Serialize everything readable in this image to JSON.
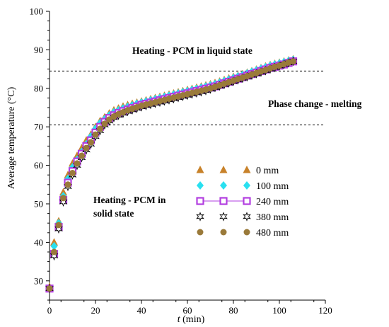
{
  "chart_data": {
    "type": "scatter",
    "xlabel_var": "t",
    "xlabel_unit": " (min)",
    "ylabel": "Average temperature (°C)",
    "xlim": [
      0,
      120
    ],
    "ylim": [
      25,
      100
    ],
    "x_ticks": [
      0,
      20,
      40,
      60,
      80,
      100,
      120
    ],
    "y_ticks": [
      30,
      40,
      50,
      60,
      70,
      80,
      90,
      100
    ],
    "grid": false,
    "legend_position": "right-middle",
    "reference_lines": [
      {
        "y": 84.5,
        "style": "dashed"
      },
      {
        "y": 70.5,
        "style": "dashed"
      }
    ],
    "annotations": [
      {
        "key": "liquid",
        "text": "Heating - PCM in liquid state"
      },
      {
        "key": "melting",
        "text": "Phase change - melting"
      },
      {
        "key": "solid1",
        "text": "Heating - PCM in"
      },
      {
        "key": "solid2",
        "text": "solid state"
      }
    ],
    "series": [
      {
        "name": "0 mm",
        "marker": "triangle",
        "color": "#C8822A",
        "x": [
          0,
          2,
          4,
          6,
          8,
          10,
          12,
          14,
          16,
          18,
          20,
          22,
          24,
          26,
          28,
          30,
          32,
          34,
          36,
          38,
          40,
          42,
          44,
          46,
          48,
          50,
          52,
          54,
          56,
          58,
          60,
          62,
          64,
          66,
          68,
          70,
          72,
          74,
          76,
          78,
          80,
          82,
          84,
          86,
          88,
          90,
          92,
          94,
          96,
          98,
          100,
          102,
          104,
          106
        ],
        "y": [
          28.5,
          40.0,
          45.5,
          53.0,
          57.5,
          60.5,
          62.5,
          64.5,
          66.5,
          68.0,
          70.0,
          71.5,
          72.5,
          73.5,
          74.3,
          74.8,
          75.3,
          75.7,
          76.0,
          76.3,
          76.6,
          76.9,
          77.2,
          77.5,
          77.8,
          78.1,
          78.4,
          78.7,
          79.0,
          79.3,
          79.6,
          79.9,
          80.2,
          80.5,
          80.8,
          81.1,
          81.4,
          81.8,
          82.2,
          82.6,
          83.0,
          83.3,
          83.7,
          84.1,
          84.5,
          84.9,
          85.3,
          85.7,
          86.1,
          86.4,
          86.7,
          87.0,
          87.3,
          87.6
        ]
      },
      {
        "name": "100 mm",
        "marker": "diamond",
        "color": "#29E0F0",
        "x": [
          0,
          2,
          4,
          6,
          8,
          10,
          12,
          14,
          16,
          18,
          20,
          22,
          24,
          26,
          28,
          30,
          32,
          34,
          36,
          38,
          40,
          42,
          44,
          46,
          48,
          50,
          52,
          54,
          56,
          58,
          60,
          62,
          64,
          66,
          68,
          70,
          72,
          74,
          76,
          78,
          80,
          82,
          84,
          86,
          88,
          90,
          92,
          94,
          96,
          98,
          100,
          102,
          104,
          106
        ],
        "y": [
          28.0,
          39.0,
          45.0,
          52.0,
          56.5,
          59.5,
          61.5,
          63.5,
          65.5,
          67.5,
          69.5,
          71.0,
          72.0,
          73.0,
          73.8,
          74.3,
          74.8,
          75.2,
          75.6,
          76.0,
          76.3,
          76.6,
          76.9,
          77.2,
          77.5,
          77.8,
          78.1,
          78.4,
          78.7,
          79.0,
          79.3,
          79.6,
          79.9,
          80.2,
          80.5,
          80.8,
          81.1,
          81.5,
          81.9,
          82.3,
          82.7,
          83.1,
          83.5,
          83.9,
          84.3,
          84.7,
          85.1,
          85.5,
          85.9,
          86.2,
          86.5,
          86.8,
          87.1,
          87.4
        ]
      },
      {
        "name": "240 mm",
        "marker": "square",
        "color": "#B23EE0",
        "x": [
          0,
          2,
          4,
          6,
          8,
          10,
          12,
          14,
          16,
          18,
          20,
          22,
          24,
          26,
          28,
          30,
          32,
          34,
          36,
          38,
          40,
          42,
          44,
          46,
          48,
          50,
          52,
          54,
          56,
          58,
          60,
          62,
          64,
          66,
          68,
          70,
          72,
          74,
          76,
          78,
          80,
          82,
          84,
          86,
          88,
          90,
          92,
          94,
          96,
          98,
          100,
          102,
          104,
          106
        ],
        "y": [
          28.0,
          37.0,
          44.0,
          51.0,
          55.5,
          58.5,
          61.0,
          63.0,
          65.0,
          66.5,
          68.5,
          70.0,
          71.3,
          72.3,
          73.0,
          73.6,
          74.1,
          74.5,
          74.9,
          75.3,
          75.7,
          76.0,
          76.3,
          76.6,
          76.9,
          77.2,
          77.5,
          77.8,
          78.1,
          78.4,
          78.7,
          79.0,
          79.3,
          79.6,
          79.9,
          80.2,
          80.5,
          80.9,
          81.3,
          81.7,
          82.1,
          82.5,
          82.9,
          83.3,
          83.7,
          84.1,
          84.5,
          84.9,
          85.3,
          85.6,
          85.9,
          86.2,
          86.6,
          87.0
        ]
      },
      {
        "name": "380 mm",
        "marker": "star",
        "color": "#000000",
        "x": [
          0,
          2,
          4,
          6,
          8,
          10,
          12,
          14,
          16,
          18,
          20,
          22,
          24,
          26,
          28,
          30,
          32,
          34,
          36,
          38,
          40,
          42,
          44,
          46,
          48,
          50,
          52,
          54,
          56,
          58,
          60,
          62,
          64,
          66,
          68,
          70,
          72,
          74,
          76,
          78,
          80,
          82,
          84,
          86,
          88,
          90,
          92,
          94,
          96,
          98,
          100,
          102,
          104,
          106
        ],
        "y": [
          28.0,
          36.5,
          43.5,
          50.5,
          54.5,
          57.5,
          60.0,
          62.0,
          64.0,
          65.5,
          67.5,
          69.0,
          70.5,
          71.5,
          72.4,
          73.0,
          73.5,
          74.0,
          74.4,
          74.8,
          75.2,
          75.5,
          75.8,
          76.1,
          76.4,
          76.7,
          77.0,
          77.3,
          77.6,
          77.9,
          78.2,
          78.5,
          78.8,
          79.1,
          79.4,
          79.8,
          80.2,
          80.6,
          81.0,
          81.4,
          81.8,
          82.2,
          82.6,
          83.0,
          83.4,
          83.8,
          84.2,
          84.6,
          85.0,
          85.4,
          85.8,
          86.2,
          86.6,
          87.0
        ]
      },
      {
        "name": "480 mm",
        "marker": "circle",
        "color": "#9A7A3A",
        "x": [
          0,
          2,
          4,
          6,
          8,
          10,
          12,
          14,
          16,
          18,
          20,
          22,
          24,
          26,
          28,
          30,
          32,
          34,
          36,
          38,
          40,
          42,
          44,
          46,
          48,
          50,
          52,
          54,
          56,
          58,
          60,
          62,
          64,
          66,
          68,
          70,
          72,
          74,
          76,
          78,
          80,
          82,
          84,
          86,
          88,
          90,
          92,
          94,
          96,
          98,
          100,
          102,
          104,
          106
        ],
        "y": [
          28.0,
          37.5,
          44.5,
          51.5,
          55.0,
          58.0,
          60.5,
          62.5,
          64.5,
          66.0,
          68.0,
          69.5,
          70.8,
          71.9,
          72.7,
          73.3,
          73.8,
          74.3,
          74.7,
          75.1,
          75.5,
          75.8,
          76.1,
          76.4,
          76.7,
          77.0,
          77.3,
          77.6,
          77.9,
          78.2,
          78.5,
          78.8,
          79.1,
          79.4,
          79.7,
          80.0,
          80.4,
          80.8,
          81.2,
          81.6,
          82.0,
          82.4,
          82.8,
          83.2,
          83.6,
          84.0,
          84.4,
          84.8,
          85.2,
          85.6,
          85.9,
          86.3,
          86.7,
          87.0
        ]
      }
    ]
  }
}
